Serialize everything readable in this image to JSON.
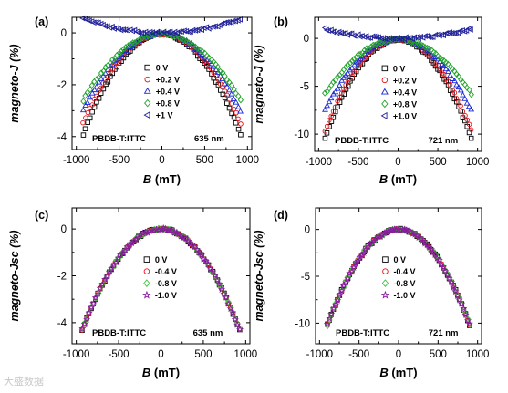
{
  "figure": {
    "watermark_text": "大盛数据"
  },
  "chart_data": [
    {
      "type": "scatter",
      "panel_label": "(a)",
      "xlabel": "B (mT)",
      "ylabel": "magneto-J (%)",
      "xlim": [
        -1050,
        1050
      ],
      "ylim": [
        -4.5,
        0.6
      ],
      "xticks": [
        -1000,
        -500,
        0,
        500,
        1000
      ],
      "yticks": [
        0,
        -2,
        -4
      ],
      "annotation_left": "PBDB-T:ITTC",
      "annotation_right": "635 nm",
      "legend_position": "center-right",
      "series": [
        {
          "name": "0 V",
          "marker": "square",
          "color": "#000000",
          "x_range": [
            -920,
            920
          ],
          "curve": [
            -3.9,
            1.0,
            -0.05
          ]
        },
        {
          "name": "+0.2 V",
          "marker": "circle",
          "color": "#e8141b",
          "x_range": [
            -920,
            920
          ],
          "curve": [
            -3.5,
            1.0,
            -0.05
          ]
        },
        {
          "name": "+0.4 V",
          "marker": "triangle",
          "color": "#1a2bd6",
          "x_range": [
            -920,
            920
          ],
          "curve": [
            -3.0,
            1.0,
            -0.05
          ]
        },
        {
          "name": "+0.8 V",
          "marker": "diamond",
          "color": "#22a32a",
          "x_range": [
            -920,
            920
          ],
          "curve": [
            -2.6,
            1.0,
            -0.05
          ]
        },
        {
          "name": "+1 V",
          "marker": "tri-left",
          "color": "#1f1f9a",
          "x_range": [
            -920,
            920
          ],
          "curve": [
            0.55,
            1.0,
            0.0
          ]
        }
      ]
    },
    {
      "type": "scatter",
      "panel_label": "(b)",
      "xlabel": "B (mT)",
      "ylabel": "magneto-J (%)",
      "xlim": [
        -1050,
        1050
      ],
      "ylim": [
        -11.8,
        2.2
      ],
      "xticks": [
        -1000,
        -500,
        0,
        500,
        1000
      ],
      "yticks": [
        0,
        -5,
        -10
      ],
      "annotation_left": "PBDB-T:ITTC",
      "annotation_right": "721 nm",
      "legend_position": "center-right",
      "series": [
        {
          "name": "0 V",
          "marker": "square",
          "color": "#000000",
          "x_range": [
            -920,
            920
          ],
          "curve": [
            -10.4,
            1.0,
            -0.1
          ]
        },
        {
          "name": "+0.2 V",
          "marker": "circle",
          "color": "#e8141b",
          "x_range": [
            -920,
            920
          ],
          "curve": [
            -9.6,
            1.0,
            -0.1
          ]
        },
        {
          "name": "+0.4 V",
          "marker": "triangle",
          "color": "#1a2bd6",
          "x_range": [
            -920,
            920
          ],
          "curve": [
            -7.5,
            1.0,
            -0.1
          ]
        },
        {
          "name": "+0.8 V",
          "marker": "diamond",
          "color": "#22a32a",
          "x_range": [
            -920,
            920
          ],
          "curve": [
            -5.8,
            1.0,
            -0.1
          ]
        },
        {
          "name": "+1.0 V",
          "marker": "tri-left",
          "color": "#1f1f9a",
          "x_range": [
            -920,
            920
          ],
          "curve": [
            1.0,
            1.0,
            0.0
          ]
        }
      ]
    },
    {
      "type": "scatter",
      "panel_label": "(c)",
      "xlabel": "B (mT)",
      "ylabel": "magneto-Jsc (%)",
      "xlim": [
        -1050,
        1050
      ],
      "ylim": [
        -4.9,
        0.9
      ],
      "xticks": [
        -1000,
        -500,
        0,
        500,
        1000
      ],
      "yticks": [
        0,
        -2,
        -4
      ],
      "annotation_left": "PBDB-T:ITTC",
      "annotation_right": "635 nm",
      "legend_position": "center-right",
      "series": [
        {
          "name": "0 V",
          "marker": "square",
          "color": "#000000",
          "x_range": [
            -930,
            930
          ],
          "curve": [
            -4.3,
            1.0,
            0.0
          ]
        },
        {
          "name": "-0.4 V",
          "marker": "circle",
          "color": "#e8141b",
          "x_range": [
            -930,
            930
          ],
          "curve": [
            -4.3,
            1.0,
            0.0
          ]
        },
        {
          "name": "-0.8 V",
          "marker": "diamond",
          "color": "#3cc23c",
          "x_range": [
            -930,
            930
          ],
          "curve": [
            -4.3,
            1.0,
            0.0
          ]
        },
        {
          "name": "-1.0 V",
          "marker": "star",
          "color": "#8a1aa0",
          "x_range": [
            -930,
            930
          ],
          "curve": [
            -4.3,
            1.0,
            0.0
          ]
        }
      ]
    },
    {
      "type": "scatter",
      "panel_label": "(d)",
      "xlabel": "B (mT)",
      "ylabel": "magneto-Jsc (%)",
      "xlim": [
        -1050,
        1050
      ],
      "ylim": [
        -12.2,
        2.3
      ],
      "xticks": [
        -1000,
        -500,
        0,
        500,
        1000
      ],
      "yticks": [
        0,
        -5,
        -10
      ],
      "annotation_left": "PBDB-T:ITTC",
      "annotation_right": "721 nm",
      "legend_position": "center-right",
      "series": [
        {
          "name": "0 V",
          "marker": "square",
          "color": "#000000",
          "x_range": [
            -900,
            900
          ],
          "curve": [
            -10.2,
            1.0,
            0.0
          ]
        },
        {
          "name": "-0.4 V",
          "marker": "circle",
          "color": "#e8141b",
          "x_range": [
            -900,
            900
          ],
          "curve": [
            -10.2,
            1.0,
            0.0
          ]
        },
        {
          "name": "-0.8 V",
          "marker": "diamond",
          "color": "#3cc23c",
          "x_range": [
            -900,
            900
          ],
          "curve": [
            -10.2,
            1.0,
            0.0
          ]
        },
        {
          "name": "-1.0 V",
          "marker": "star",
          "color": "#8a1aa0",
          "x_range": [
            -900,
            900
          ],
          "curve": [
            -10.2,
            1.0,
            0.0
          ]
        }
      ]
    }
  ]
}
